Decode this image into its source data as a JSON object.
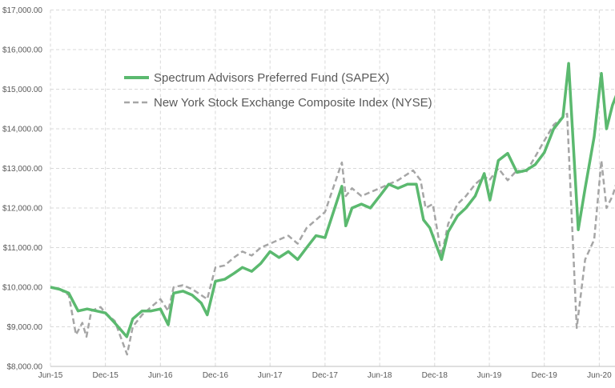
{
  "chart_data": {
    "type": "line",
    "title": "",
    "xlabel": "",
    "ylabel": "",
    "ylim": [
      8000,
      17000
    ],
    "xlim": [
      "2015-06-01",
      "2020-08-10"
    ],
    "grid": true,
    "legend_placement": "top-left",
    "y_ticks": [
      "$8,000.00",
      "$9,000.00",
      "$10,000.00",
      "$11,000.00",
      "$12,000.00",
      "$13,000.00",
      "$14,000.00",
      "$15,000.00",
      "$16,000.00",
      "$17,000.00"
    ],
    "y_tick_values": [
      8000,
      9000,
      10000,
      11000,
      12000,
      13000,
      14000,
      15000,
      16000,
      17000
    ],
    "x_ticks": [
      "Jun-15",
      "Dec-15",
      "Jun-16",
      "Dec-16",
      "Jun-17",
      "Dec-17",
      "Jun-18",
      "Dec-18",
      "Jun-19",
      "Dec-19",
      "Jun-20"
    ],
    "x_tick_dates": [
      "2015-06-01",
      "2015-12-01",
      "2016-06-01",
      "2016-12-01",
      "2017-06-01",
      "2017-12-01",
      "2018-06-01",
      "2018-12-01",
      "2019-06-01",
      "2019-12-01",
      "2020-06-01"
    ],
    "series": [
      {
        "name": "Spectrum Advisors Preferred Fund (SAPEX)",
        "color": "#5bb96f",
        "style": "solid",
        "points": [
          [
            "2015-06-01",
            10000
          ],
          [
            "2015-07-01",
            9950
          ],
          [
            "2015-08-01",
            9850
          ],
          [
            "2015-09-01",
            9400
          ],
          [
            "2015-10-01",
            9450
          ],
          [
            "2015-11-01",
            9400
          ],
          [
            "2015-12-01",
            9350
          ],
          [
            "2016-01-01",
            9100
          ],
          [
            "2016-02-10",
            8750
          ],
          [
            "2016-03-01",
            9200
          ],
          [
            "2016-04-01",
            9400
          ],
          [
            "2016-05-01",
            9400
          ],
          [
            "2016-06-01",
            9450
          ],
          [
            "2016-06-27",
            9050
          ],
          [
            "2016-07-15",
            9850
          ],
          [
            "2016-08-15",
            9900
          ],
          [
            "2016-09-15",
            9800
          ],
          [
            "2016-10-15",
            9600
          ],
          [
            "2016-11-04",
            9300
          ],
          [
            "2016-12-01",
            10150
          ],
          [
            "2017-01-01",
            10200
          ],
          [
            "2017-02-01",
            10350
          ],
          [
            "2017-03-01",
            10500
          ],
          [
            "2017-04-01",
            10400
          ],
          [
            "2017-05-01",
            10600
          ],
          [
            "2017-06-01",
            10900
          ],
          [
            "2017-07-01",
            10750
          ],
          [
            "2017-08-01",
            10900
          ],
          [
            "2017-09-01",
            10700
          ],
          [
            "2017-10-01",
            11000
          ],
          [
            "2017-11-01",
            11300
          ],
          [
            "2017-12-01",
            11250
          ],
          [
            "2018-01-26",
            12550
          ],
          [
            "2018-02-08",
            11550
          ],
          [
            "2018-03-01",
            12000
          ],
          [
            "2018-04-01",
            12100
          ],
          [
            "2018-05-01",
            12000
          ],
          [
            "2018-06-01",
            12300
          ],
          [
            "2018-07-01",
            12600
          ],
          [
            "2018-08-01",
            12500
          ],
          [
            "2018-09-01",
            12600
          ],
          [
            "2018-10-01",
            12600
          ],
          [
            "2018-10-25",
            11700
          ],
          [
            "2018-11-15",
            11500
          ],
          [
            "2018-12-24",
            10700
          ],
          [
            "2019-01-15",
            11400
          ],
          [
            "2019-02-15",
            11800
          ],
          [
            "2019-03-15",
            12000
          ],
          [
            "2019-04-15",
            12300
          ],
          [
            "2019-05-15",
            12870
          ],
          [
            "2019-06-03",
            12200
          ],
          [
            "2019-07-01",
            13200
          ],
          [
            "2019-08-01",
            13380
          ],
          [
            "2019-09-01",
            12900
          ],
          [
            "2019-10-01",
            12950
          ],
          [
            "2019-11-01",
            13100
          ],
          [
            "2019-12-01",
            13400
          ],
          [
            "2020-01-01",
            14000
          ],
          [
            "2020-02-01",
            14300
          ],
          [
            "2020-02-20",
            15650
          ],
          [
            "2020-03-23",
            11450
          ],
          [
            "2020-04-15",
            12500
          ],
          [
            "2020-05-15",
            13800
          ],
          [
            "2020-06-08",
            15400
          ],
          [
            "2020-06-25",
            14000
          ],
          [
            "2020-07-15",
            14600
          ],
          [
            "2020-08-10",
            15100
          ]
        ]
      },
      {
        "name": "New York Stock Exchange Composite Index (NYSE)",
        "color": "#a6a6a6",
        "style": "dashed",
        "points": [
          [
            "2015-06-01",
            10000
          ],
          [
            "2015-07-01",
            9950
          ],
          [
            "2015-08-01",
            9800
          ],
          [
            "2015-08-25",
            8800
          ],
          [
            "2015-09-15",
            9100
          ],
          [
            "2015-09-29",
            8750
          ],
          [
            "2015-10-15",
            9400
          ],
          [
            "2015-11-15",
            9500
          ],
          [
            "2015-12-01",
            9350
          ],
          [
            "2016-01-01",
            9150
          ],
          [
            "2016-02-11",
            8300
          ],
          [
            "2016-03-01",
            9000
          ],
          [
            "2016-04-01",
            9300
          ],
          [
            "2016-05-01",
            9500
          ],
          [
            "2016-06-01",
            9700
          ],
          [
            "2016-06-27",
            9400
          ],
          [
            "2016-07-15",
            10000
          ],
          [
            "2016-08-15",
            10050
          ],
          [
            "2016-09-15",
            9950
          ],
          [
            "2016-10-15",
            9800
          ],
          [
            "2016-11-04",
            9700
          ],
          [
            "2016-12-01",
            10500
          ],
          [
            "2017-01-01",
            10550
          ],
          [
            "2017-02-01",
            10750
          ],
          [
            "2017-03-01",
            10900
          ],
          [
            "2017-04-01",
            10800
          ],
          [
            "2017-05-01",
            11000
          ],
          [
            "2017-06-01",
            11100
          ],
          [
            "2017-07-01",
            11200
          ],
          [
            "2017-08-01",
            11300
          ],
          [
            "2017-09-01",
            11100
          ],
          [
            "2017-10-01",
            11500
          ],
          [
            "2017-11-01",
            11700
          ],
          [
            "2017-12-01",
            11900
          ],
          [
            "2018-01-26",
            13150
          ],
          [
            "2018-02-08",
            12300
          ],
          [
            "2018-03-01",
            12500
          ],
          [
            "2018-04-01",
            12300
          ],
          [
            "2018-05-01",
            12400
          ],
          [
            "2018-06-01",
            12500
          ],
          [
            "2018-07-01",
            12600
          ],
          [
            "2018-08-01",
            12700
          ],
          [
            "2018-09-20",
            12950
          ],
          [
            "2018-10-15",
            12700
          ],
          [
            "2018-11-01",
            12000
          ],
          [
            "2018-11-25",
            12100
          ],
          [
            "2018-12-24",
            10800
          ],
          [
            "2019-01-15",
            11600
          ],
          [
            "2019-02-15",
            12100
          ],
          [
            "2019-03-15",
            12300
          ],
          [
            "2019-04-15",
            12600
          ],
          [
            "2019-05-15",
            12800
          ],
          [
            "2019-06-01",
            12700
          ],
          [
            "2019-07-01",
            13000
          ],
          [
            "2019-08-01",
            12700
          ],
          [
            "2019-09-01",
            12950
          ],
          [
            "2019-10-01",
            12900
          ],
          [
            "2019-11-01",
            13300
          ],
          [
            "2019-12-01",
            13700
          ],
          [
            "2020-01-01",
            14100
          ],
          [
            "2020-02-15",
            14380
          ],
          [
            "2020-03-18",
            8970
          ],
          [
            "2020-04-15",
            10700
          ],
          [
            "2020-05-15",
            11200
          ],
          [
            "2020-06-08",
            13200
          ],
          [
            "2020-06-25",
            12000
          ],
          [
            "2020-07-15",
            12300
          ],
          [
            "2020-08-10",
            12950
          ]
        ]
      }
    ]
  }
}
